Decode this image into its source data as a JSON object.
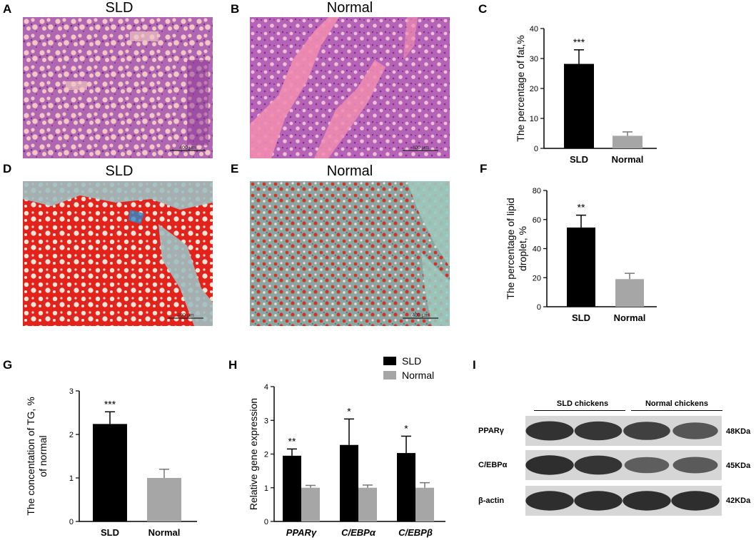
{
  "panels": {
    "A": {
      "letter": "A",
      "title": "SLD",
      "scalebar": "400 μm"
    },
    "B": {
      "letter": "B",
      "title": "Normal",
      "scalebar": "400 μm"
    },
    "C": {
      "letter": "C"
    },
    "D": {
      "letter": "D",
      "title": "SLD",
      "scalebar": "400 μm"
    },
    "E": {
      "letter": "E",
      "title": "Normal",
      "scalebar": "400 μm"
    },
    "F": {
      "letter": "F"
    },
    "G": {
      "letter": "G"
    },
    "H": {
      "letter": "H"
    },
    "I": {
      "letter": "I"
    }
  },
  "colors": {
    "he_bg": "#e7a7c9",
    "he_dark": "#9a3f9e",
    "oil_red": "#e8261c",
    "oil_bg": "#8ab4b8",
    "sld_bar": "#000000",
    "normal_bar": "#a6a6a6"
  },
  "chart_data": [
    {
      "id": "C",
      "type": "bar",
      "categories": [
        "SLD",
        "Normal"
      ],
      "values": [
        28.2,
        4.2
      ],
      "errors": [
        4.7,
        1.3
      ],
      "significance": [
        "***",
        ""
      ],
      "ylabel": "The percentage of fat,%",
      "ylim": [
        0,
        40
      ],
      "yticks": [
        "0",
        "10",
        "20",
        "30",
        "40"
      ]
    },
    {
      "id": "F",
      "type": "bar",
      "categories": [
        "SLD",
        "Normal"
      ],
      "values": [
        54.5,
        19
      ],
      "errors": [
        8.5,
        4
      ],
      "significance": [
        "**",
        ""
      ],
      "ylabel_lines": [
        "The percentage of lipid",
        "droplet, %"
      ],
      "ylim": [
        0,
        80
      ],
      "yticks": [
        "0",
        "20",
        "40",
        "60",
        "80"
      ]
    },
    {
      "id": "G",
      "type": "bar",
      "categories": [
        "SLD",
        "Normal"
      ],
      "values": [
        2.24,
        1.0
      ],
      "errors": [
        0.28,
        0.2
      ],
      "significance": [
        "***",
        ""
      ],
      "ylabel_lines": [
        "The concentation of TG, %",
        "of normal"
      ],
      "ylim": [
        0,
        3
      ],
      "yticks": [
        "0",
        "1",
        "2",
        "3"
      ]
    },
    {
      "id": "H",
      "type": "bar",
      "categories": [
        "PPARγ",
        "C/EBPα",
        "C/EBPβ"
      ],
      "series": [
        {
          "name": "SLD",
          "values": [
            1.95,
            2.27,
            2.03
          ],
          "errors": [
            0.2,
            0.77,
            0.5
          ],
          "significance": [
            "**",
            "*",
            "*"
          ]
        },
        {
          "name": "Normal",
          "values": [
            1.0,
            1.0,
            1.0
          ],
          "errors": [
            0.07,
            0.08,
            0.15
          ],
          "significance": [
            "",
            "",
            ""
          ]
        }
      ],
      "ylabel": "Relative gene expression",
      "ylim": [
        0,
        4
      ],
      "yticks": [
        "0",
        "1",
        "2",
        "3",
        "4"
      ],
      "legend": "top-right"
    }
  ],
  "blot": {
    "groups": [
      "SLD chickens",
      "Normal chickens"
    ],
    "rows": [
      {
        "protein": "PPARγ",
        "size": "48KDa",
        "intensity": [
          0.92,
          0.88,
          0.8,
          0.62
        ]
      },
      {
        "protein": "C/EBPα",
        "size": "45KDa",
        "intensity": [
          0.95,
          0.9,
          0.55,
          0.58
        ]
      },
      {
        "protein": "β-actin",
        "size": "42KDa",
        "intensity": [
          0.95,
          0.95,
          0.95,
          0.95
        ]
      }
    ]
  }
}
